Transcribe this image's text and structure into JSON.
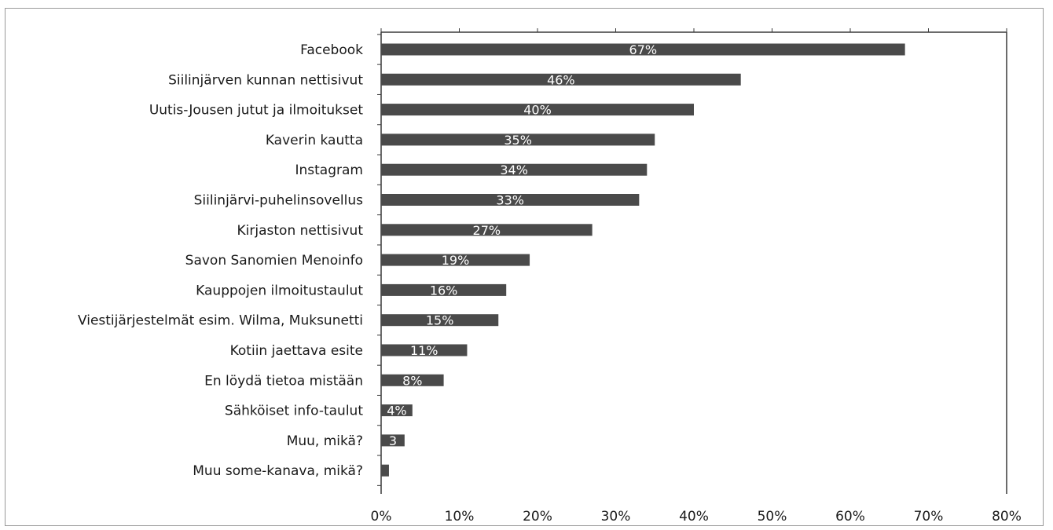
{
  "chart_data": {
    "type": "bar",
    "orientation": "horizontal",
    "categories": [
      "Facebook",
      "Siilinjärven kunnan nettisivut",
      "Uutis-Jousen jutut ja ilmoitukset",
      "Kaverin kautta",
      "Instagram",
      "Siilinjärvi-puhelinsovellus",
      "Kirjaston nettisivut",
      "Savon Sanomien Menoinfo",
      "Kauppojen ilmoitustaulut",
      "Viestijärjestelmät esim. Wilma, Muksunetti",
      "Kotiin jaettava esite",
      "En löydä tietoa mistään",
      "Sähköiset info-taulut",
      "Muu, mikä?",
      "Muu some-kanava, mikä?"
    ],
    "values": [
      67,
      46,
      40,
      35,
      34,
      33,
      27,
      19,
      16,
      15,
      11,
      8,
      4,
      3,
      1
    ],
    "data_labels": [
      "67%",
      "46%",
      "40%",
      "35%",
      "34%",
      "33%",
      "27%",
      "19%",
      "16%",
      "15%",
      "11%",
      "8%",
      "4%",
      "3",
      ""
    ],
    "xlim": [
      0,
      80
    ],
    "x_ticks": [
      "0%",
      "10%",
      "20%",
      "30%",
      "40%",
      "50%",
      "60%",
      "70%",
      "80%"
    ],
    "title": "",
    "xlabel": "",
    "ylabel": "",
    "grid": false,
    "legend": "none",
    "colors": {
      "bar": "#4a4a4a",
      "axis": "#3a3a3a",
      "frame": "#9a9a9a",
      "label_text": "#1a1a1a",
      "data_label_text": "#ffffff"
    }
  }
}
